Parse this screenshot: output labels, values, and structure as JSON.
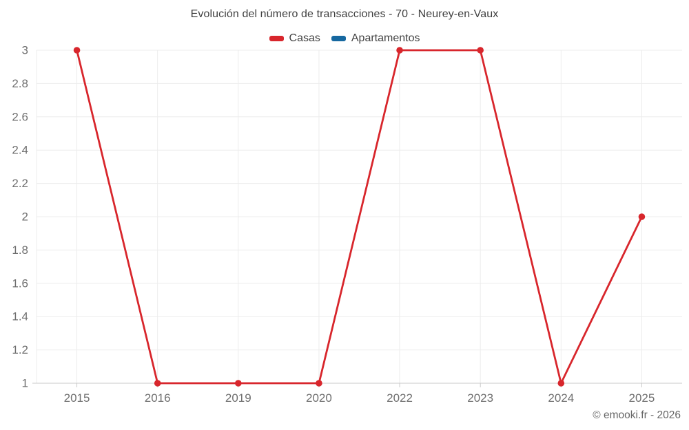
{
  "chart_data": {
    "type": "line",
    "title": "Evolución del número de transacciones - 70 - Neurey-en-Vaux",
    "categories": [
      "2015",
      "2016",
      "2019",
      "2020",
      "2022",
      "2023",
      "2024",
      "2025"
    ],
    "series": [
      {
        "name": "Casas",
        "color": "#d8262c",
        "values": [
          3,
          1,
          1,
          1,
          3,
          3,
          1,
          2
        ]
      },
      {
        "name": "Apartamentos",
        "color": "#1668a0",
        "values": []
      }
    ],
    "xlabel": "",
    "ylabel": "",
    "ylim": [
      1,
      3
    ],
    "yticks": [
      1,
      1.2,
      1.4,
      1.6,
      1.8,
      2,
      2.2,
      2.4,
      2.6,
      2.8,
      3
    ],
    "grid": true,
    "legend_position": "top",
    "colors": {
      "gridline": "#ececec",
      "axis_line": "#c9c9c9",
      "tick_label": "#6f6f6f",
      "background": "#ffffff"
    }
  },
  "footer": {
    "copyright": "© emooki.fr - 2026"
  }
}
